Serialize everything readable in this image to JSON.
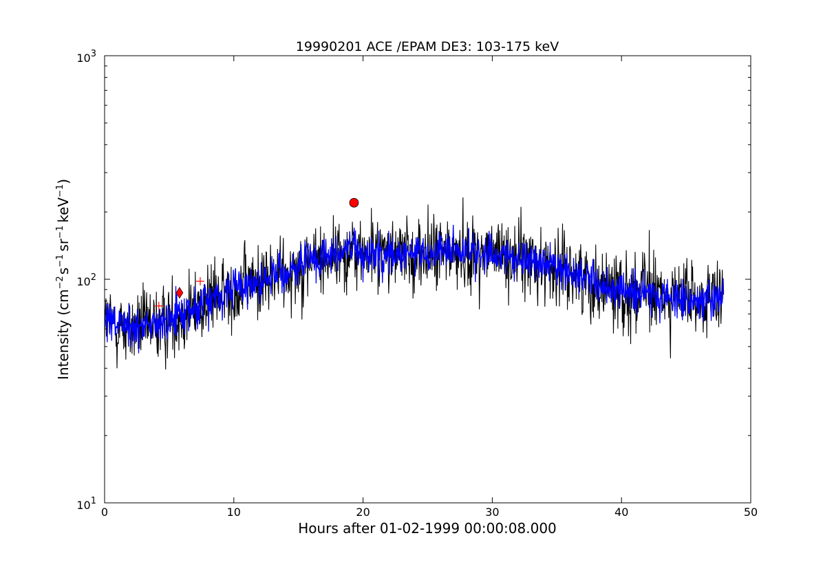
{
  "chart_data": {
    "type": "line",
    "title": "19990201 ACE /EPAM DE3: 103-175 keV",
    "xlabel": "Hours after 01-02-1999 00:00:08.000",
    "ylabel": {
      "prefix": "Intensity (cm",
      "sup1": "−2",
      "mid1": "s",
      "sup2": "−1",
      "mid2": "sr",
      "sup3": "−1",
      "mid3": "keV",
      "sup4": "−1",
      "suffix": ")"
    },
    "xlim": [
      0,
      50
    ],
    "ylim": [
      10,
      1000
    ],
    "yscale": "log",
    "grid": false,
    "x_ticks": [
      "0",
      "10",
      "20",
      "30",
      "40",
      "50"
    ],
    "y_ticks": [
      {
        "base": "10",
        "exp": "1"
      },
      {
        "base": "10",
        "exp": "2"
      },
      {
        "base": "10",
        "exp": "3"
      }
    ],
    "series": [
      {
        "color": "#000000",
        "x_range": [
          0,
          47.9
        ],
        "baseline_hours": [
          0,
          2,
          4,
          6,
          8,
          10,
          12,
          14,
          16,
          18,
          20,
          22,
          24,
          26,
          28,
          30,
          32,
          34,
          36,
          38,
          40,
          42,
          44,
          46,
          47.9
        ],
        "baseline_values": [
          64,
          60,
          62,
          70,
          80,
          90,
          98,
          108,
          122,
          130,
          132,
          130,
          128,
          132,
          133,
          130,
          125,
          118,
          108,
          96,
          90,
          86,
          84,
          80,
          78
        ],
        "noise_spread_log10": 0.13
      },
      {
        "color": "#0000ff",
        "x_range": [
          0,
          47.9
        ],
        "baseline_hours": [
          0,
          2,
          4,
          6,
          8,
          10,
          12,
          14,
          16,
          18,
          20,
          22,
          24,
          26,
          28,
          30,
          32,
          34,
          36,
          38,
          40,
          42,
          44,
          46,
          47.9
        ],
        "baseline_values": [
          64,
          60,
          62,
          70,
          80,
          90,
          98,
          108,
          122,
          130,
          132,
          130,
          128,
          132,
          133,
          130,
          125,
          118,
          108,
          96,
          90,
          86,
          84,
          80,
          78
        ],
        "noise_spread_log10": 0.07
      }
    ],
    "markers": [
      {
        "shape": "circle",
        "x": 19.3,
        "y": 220,
        "color": "#ff0000"
      },
      {
        "shape": "diamond",
        "x": 5.8,
        "y": 87,
        "color": "#ff0000"
      },
      {
        "shape": "plus",
        "x": 4.2,
        "y": 76,
        "color": "#ff0000"
      },
      {
        "shape": "plus",
        "x": 7.4,
        "y": 98,
        "color": "#ff0000"
      }
    ]
  }
}
